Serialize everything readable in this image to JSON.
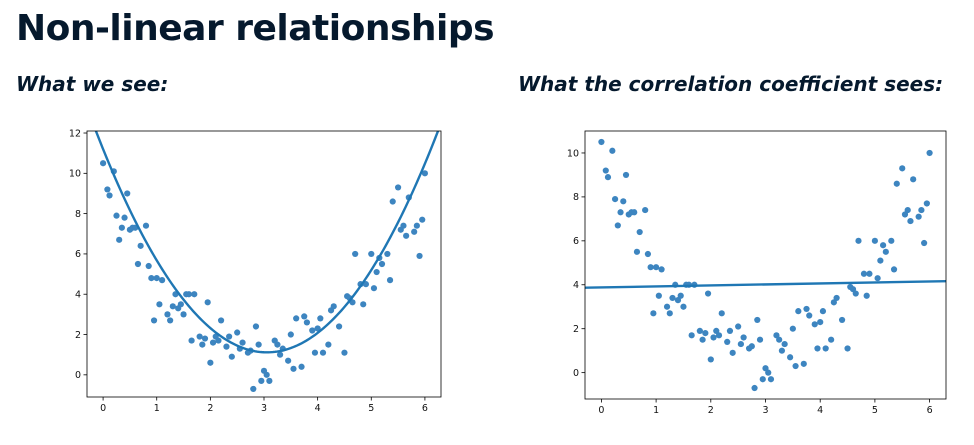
{
  "slide": {
    "title": "Non-linear relationships",
    "left_caption": "What we see:",
    "right_caption": "What the correlation coefficient sees:"
  },
  "colors": {
    "point": "#3d85c0",
    "line": "#1f77b4",
    "axis": "#000000"
  },
  "chart_data": [
    {
      "type": "scatter",
      "title": "",
      "xlabel": "",
      "ylabel": "",
      "grid": false,
      "xlim": [
        -0.3,
        6.3
      ],
      "ylim": [
        -1.1,
        12.1
      ],
      "xticks": [
        0,
        1,
        2,
        3,
        4,
        5,
        6
      ],
      "yticks": [
        0,
        2,
        4,
        6,
        8,
        10,
        12
      ],
      "fit": {
        "kind": "quadratic",
        "coef": [
          1.08,
          -6.6,
          11.2
        ]
      },
      "points": {
        "x": [
          0.0,
          0.08,
          0.12,
          0.2,
          0.25,
          0.3,
          0.35,
          0.4,
          0.45,
          0.5,
          0.55,
          0.6,
          0.65,
          0.7,
          0.8,
          0.85,
          0.9,
          0.95,
          1.0,
          1.05,
          1.1,
          1.2,
          1.25,
          1.3,
          1.35,
          1.4,
          1.45,
          1.5,
          1.55,
          1.6,
          1.65,
          1.7,
          1.8,
          1.85,
          1.9,
          1.95,
          2.0,
          2.05,
          2.1,
          2.15,
          2.2,
          2.3,
          2.35,
          2.4,
          2.5,
          2.55,
          2.6,
          2.7,
          2.75,
          2.8,
          2.85,
          2.9,
          2.95,
          3.0,
          3.05,
          3.1,
          3.2,
          3.25,
          3.3,
          3.35,
          3.45,
          3.5,
          3.55,
          3.6,
          3.7,
          3.75,
          3.8,
          3.9,
          3.95,
          4.0,
          4.05,
          4.1,
          4.2,
          4.25,
          4.3,
          4.4,
          4.5,
          4.55,
          4.6,
          4.65,
          4.7,
          4.8,
          4.85,
          4.9,
          5.0,
          5.05,
          5.1,
          5.15,
          5.2,
          5.3,
          5.35,
          5.4,
          5.5,
          5.55,
          5.6,
          5.65,
          5.7,
          5.8,
          5.85,
          5.9,
          5.95,
          6.0
        ],
        "y": [
          10.5,
          9.2,
          8.9,
          10.1,
          7.9,
          6.7,
          7.3,
          7.8,
          9.0,
          7.2,
          7.3,
          7.3,
          5.5,
          6.4,
          7.4,
          5.4,
          4.8,
          2.7,
          4.8,
          3.5,
          4.7,
          3.0,
          2.7,
          3.4,
          4.0,
          3.3,
          3.5,
          3.0,
          4.0,
          4.0,
          1.7,
          4.0,
          1.9,
          1.5,
          1.8,
          3.6,
          0.6,
          1.6,
          1.9,
          1.7,
          2.7,
          1.4,
          1.9,
          0.9,
          2.1,
          1.3,
          1.6,
          1.1,
          1.2,
          -0.7,
          2.4,
          1.5,
          -0.3,
          0.2,
          0.0,
          -0.3,
          1.7,
          1.5,
          1.0,
          1.3,
          0.7,
          2.0,
          0.3,
          2.8,
          0.4,
          2.9,
          2.6,
          2.2,
          1.1,
          2.3,
          2.8,
          1.1,
          1.5,
          3.2,
          3.4,
          2.4,
          1.1,
          3.9,
          3.8,
          3.6,
          6.0,
          4.5,
          3.5,
          4.5,
          6.0,
          4.3,
          5.1,
          5.8,
          5.5,
          6.0,
          4.7,
          8.6,
          9.3,
          7.2,
          7.4,
          6.9,
          8.8,
          7.1,
          7.4,
          5.9,
          7.7,
          10.0
        ]
      }
    },
    {
      "type": "scatter",
      "title": "",
      "xlabel": "",
      "ylabel": "",
      "grid": false,
      "xlim": [
        -0.3,
        6.3
      ],
      "ylim": [
        -1.2,
        11.0
      ],
      "xticks": [
        0,
        1,
        2,
        3,
        4,
        5,
        6
      ],
      "yticks": [
        0,
        2,
        4,
        6,
        8,
        10
      ],
      "fit": {
        "kind": "linear",
        "coef": [
          0.045,
          3.88
        ]
      },
      "points": {
        "x": [
          0.0,
          0.08,
          0.12,
          0.2,
          0.25,
          0.3,
          0.35,
          0.4,
          0.45,
          0.5,
          0.55,
          0.6,
          0.65,
          0.7,
          0.8,
          0.85,
          0.9,
          0.95,
          1.0,
          1.05,
          1.1,
          1.2,
          1.25,
          1.3,
          1.35,
          1.4,
          1.45,
          1.5,
          1.55,
          1.6,
          1.65,
          1.7,
          1.8,
          1.85,
          1.9,
          1.95,
          2.0,
          2.05,
          2.1,
          2.15,
          2.2,
          2.3,
          2.35,
          2.4,
          2.5,
          2.55,
          2.6,
          2.7,
          2.75,
          2.8,
          2.85,
          2.9,
          2.95,
          3.0,
          3.05,
          3.1,
          3.2,
          3.25,
          3.3,
          3.35,
          3.45,
          3.5,
          3.55,
          3.6,
          3.7,
          3.75,
          3.8,
          3.9,
          3.95,
          4.0,
          4.05,
          4.1,
          4.2,
          4.25,
          4.3,
          4.4,
          4.5,
          4.55,
          4.6,
          4.65,
          4.7,
          4.8,
          4.85,
          4.9,
          5.0,
          5.05,
          5.1,
          5.15,
          5.2,
          5.3,
          5.35,
          5.4,
          5.5,
          5.55,
          5.6,
          5.65,
          5.7,
          5.8,
          5.85,
          5.9,
          5.95,
          6.0
        ],
        "y": [
          10.5,
          9.2,
          8.9,
          10.1,
          7.9,
          6.7,
          7.3,
          7.8,
          9.0,
          7.2,
          7.3,
          7.3,
          5.5,
          6.4,
          7.4,
          5.4,
          4.8,
          2.7,
          4.8,
          3.5,
          4.7,
          3.0,
          2.7,
          3.4,
          4.0,
          3.3,
          3.5,
          3.0,
          4.0,
          4.0,
          1.7,
          4.0,
          1.9,
          1.5,
          1.8,
          3.6,
          0.6,
          1.6,
          1.9,
          1.7,
          2.7,
          1.4,
          1.9,
          0.9,
          2.1,
          1.3,
          1.6,
          1.1,
          1.2,
          -0.7,
          2.4,
          1.5,
          -0.3,
          0.2,
          0.0,
          -0.3,
          1.7,
          1.5,
          1.0,
          1.3,
          0.7,
          2.0,
          0.3,
          2.8,
          0.4,
          2.9,
          2.6,
          2.2,
          1.1,
          2.3,
          2.8,
          1.1,
          1.5,
          3.2,
          3.4,
          2.4,
          1.1,
          3.9,
          3.8,
          3.6,
          6.0,
          4.5,
          3.5,
          4.5,
          6.0,
          4.3,
          5.1,
          5.8,
          5.5,
          6.0,
          4.7,
          8.6,
          9.3,
          7.2,
          7.4,
          6.9,
          8.8,
          7.1,
          7.4,
          5.9,
          7.7,
          10.0
        ]
      }
    }
  ]
}
